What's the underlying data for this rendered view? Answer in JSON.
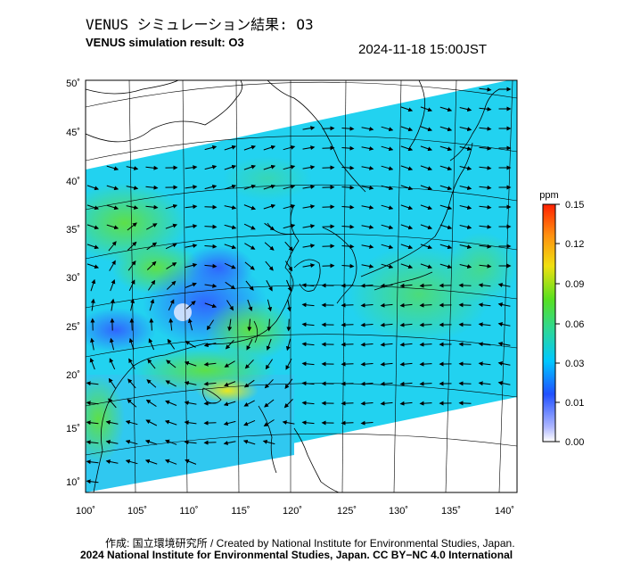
{
  "header": {
    "title_jp": "VENUS シミュレーション結果: O3",
    "title_en": "VENUS simulation result: O3",
    "timestamp": "2024-11-18 15:00JST"
  },
  "map": {
    "lon_ticks": [
      "100˚",
      "105˚",
      "110˚",
      "115˚",
      "120˚",
      "125˚",
      "130˚",
      "135˚",
      "140˚"
    ],
    "lat_ticks": [
      "50˚",
      "45˚",
      "40˚",
      "35˚",
      "30˚",
      "25˚",
      "20˚",
      "15˚",
      "10˚"
    ],
    "lon_range": [
      100,
      141
    ],
    "lat_range": [
      9,
      51
    ]
  },
  "colorbar": {
    "unit": "ppm",
    "tick_labels": [
      "0.15",
      "0.12",
      "0.09",
      "0.06",
      "0.03",
      "0.01",
      "0.00"
    ],
    "colors": [
      "#ffffff",
      "#2050ff",
      "#00c8ff",
      "#30d890",
      "#58e020",
      "#f0e010",
      "#ff9010",
      "#ff2000"
    ]
  },
  "footer": {
    "credit_jp": "作成: 国立環境研究所 / Created by National Institute for Environmental Studies, Japan.",
    "credit_en": "2024 National Institute for Environmental Studies, Japan. CC BY−NC 4.0 International"
  }
}
